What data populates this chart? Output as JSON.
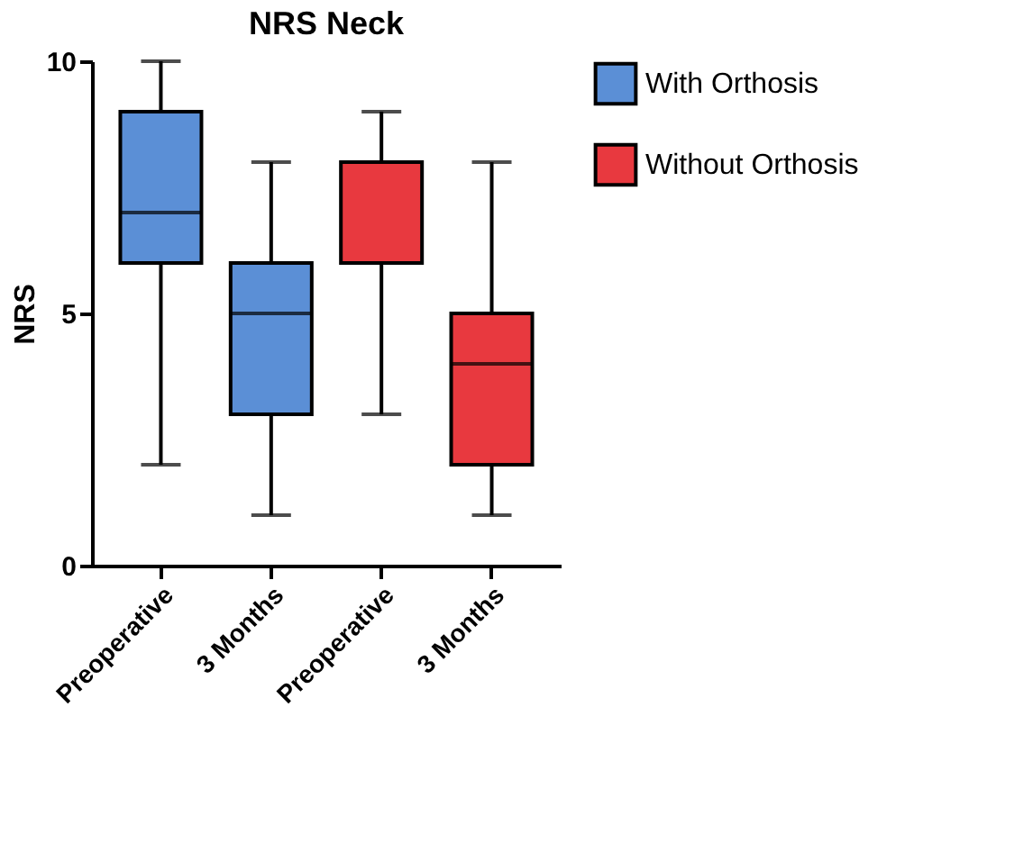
{
  "chart_data": {
    "type": "box",
    "title": "NRS Neck",
    "ylabel": "NRS",
    "categories": [
      "Preoperative",
      "3 Months",
      "Preoperative",
      "3 Months"
    ],
    "series": [
      {
        "name": "With Orthosis",
        "color": "#5b8fd6",
        "boxes": [
          {
            "low": 2,
            "q1": 6,
            "median": 7,
            "q3": 9,
            "high": 10
          },
          {
            "low": 1,
            "q1": 3,
            "median": 5,
            "q3": 6,
            "high": 8
          },
          null,
          null
        ]
      },
      {
        "name": "Without Orthosis",
        "color": "#e8393f",
        "boxes": [
          null,
          null,
          {
            "low": 3,
            "q1": 6,
            "median": 6,
            "q3": 8,
            "high": 9
          },
          {
            "low": 1,
            "q1": 2,
            "median": 4,
            "q3": 5,
            "high": 8
          }
        ]
      }
    ],
    "ylim": [
      0,
      10
    ],
    "yticks": [
      0,
      5,
      10
    ],
    "grid": false,
    "legend": "top right"
  }
}
